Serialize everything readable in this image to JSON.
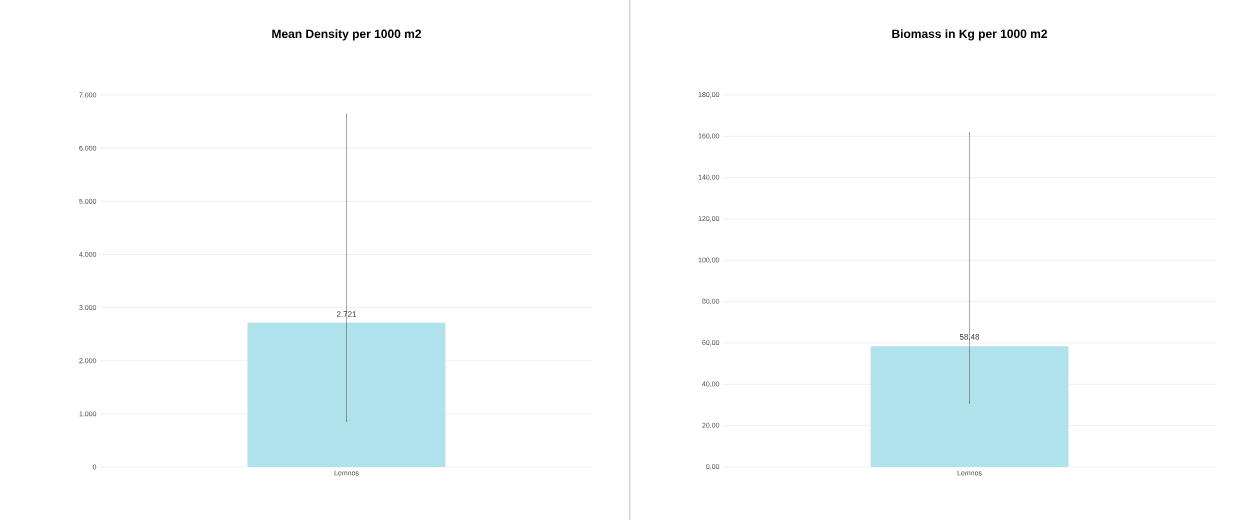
{
  "chart_data": [
    {
      "type": "bar",
      "title": "Mean Density per 1000 m2",
      "categories": [
        "Lemnos"
      ],
      "values": [
        2721
      ],
      "value_labels": [
        "2.721"
      ],
      "errors": [
        [
          866,
          6624
        ]
      ],
      "color": "#b0e2ec",
      "ylim": [
        0,
        7000
      ],
      "yticks": [
        {
          "value": 0,
          "label": "0"
        },
        {
          "value": 1000,
          "label": "1.000"
        },
        {
          "value": 2000,
          "label": "2.000"
        },
        {
          "value": 3000,
          "label": "3.000"
        },
        {
          "value": 4000,
          "label": "4.000"
        },
        {
          "value": 5000,
          "label": "5.000"
        },
        {
          "value": 6000,
          "label": "6.000"
        },
        {
          "value": 7000,
          "label": "7.000"
        }
      ],
      "grid": "y"
    },
    {
      "type": "bar",
      "title": "Biomass in Kg per 1000 m2",
      "categories": [
        "Lemnos"
      ],
      "values": [
        58.48
      ],
      "value_labels": [
        "58,48"
      ],
      "errors": [
        [
          31.0,
          161.6
        ]
      ],
      "color": "#b0e2ec",
      "ylim": [
        0,
        180
      ],
      "yticks": [
        {
          "value": 0,
          "label": "0,00"
        },
        {
          "value": 20,
          "label": "20,00"
        },
        {
          "value": 40,
          "label": "40,00"
        },
        {
          "value": 60,
          "label": "60,00"
        },
        {
          "value": 80,
          "label": "80,00"
        },
        {
          "value": 100,
          "label": "100,00"
        },
        {
          "value": 120,
          "label": "120,00"
        },
        {
          "value": 140,
          "label": "140,00"
        },
        {
          "value": 160,
          "label": "160,00"
        },
        {
          "value": 180,
          "label": "180,00"
        }
      ],
      "grid": "y"
    }
  ]
}
